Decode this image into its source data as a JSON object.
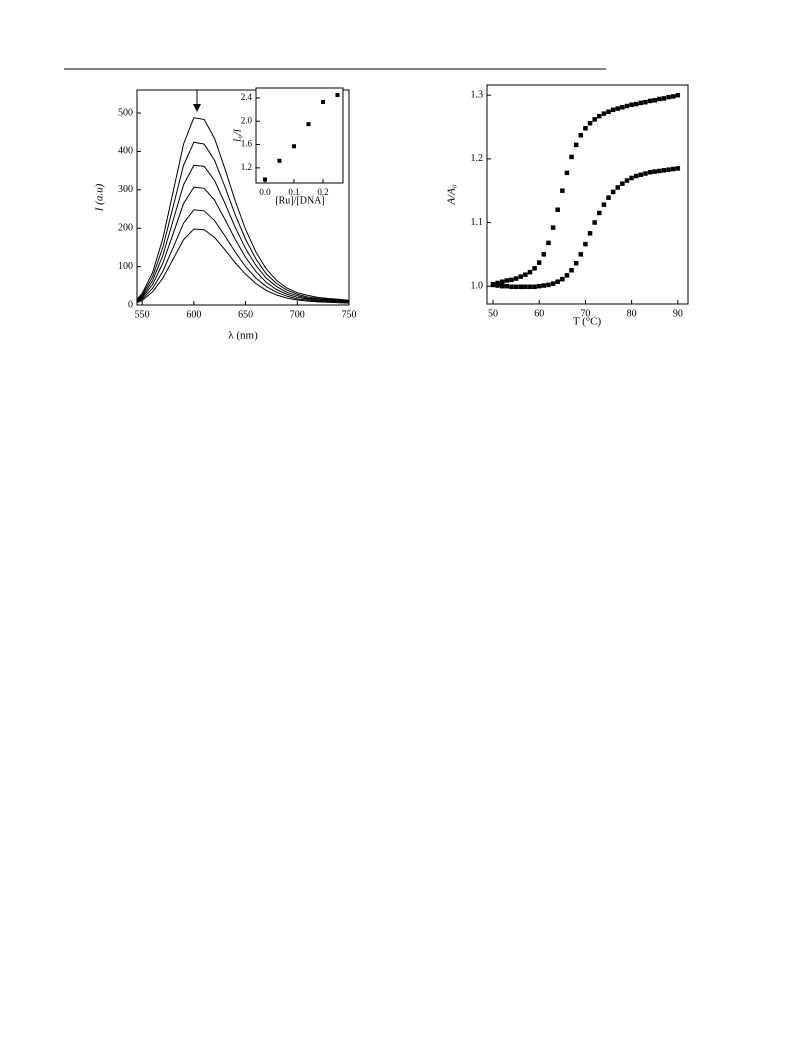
{
  "chart_data": [
    {
      "type": "line",
      "xlabel": "λ (nm)",
      "ylabel": "I (a.u)",
      "x": [
        545,
        550,
        560,
        570,
        580,
        590,
        600,
        610,
        620,
        630,
        640,
        650,
        660,
        670,
        680,
        690,
        700,
        710,
        720,
        730,
        740,
        750
      ],
      "series": [
        {
          "color": "#000000",
          "values": [
            15,
            30,
            84,
            173,
            296,
            419,
            488,
            483,
            434,
            355,
            271,
            197,
            138,
            94,
            64,
            44,
            32,
            25,
            20,
            17,
            15,
            12
          ]
        },
        {
          "color": "#000000",
          "values": [
            13,
            26,
            73,
            150,
            257,
            364,
            424,
            419,
            377,
            308,
            235,
            171,
            120,
            81,
            56,
            39,
            28,
            21,
            17,
            15,
            13,
            11
          ]
        },
        {
          "color": "#000000",
          "values": [
            11,
            22,
            63,
            129,
            221,
            313,
            364,
            361,
            324,
            265,
            202,
            147,
            103,
            70,
            48,
            33,
            24,
            18,
            15,
            13,
            11,
            9
          ]
        },
        {
          "color": "#000000",
          "values": [
            9,
            19,
            53,
            109,
            186,
            264,
            307,
            304,
            273,
            223,
            171,
            124,
            87,
            59,
            40,
            28,
            20,
            16,
            12,
            11,
            9,
            8
          ]
        },
        {
          "color": "#000000",
          "values": [
            8,
            15,
            43,
            88,
            150,
            213,
            248,
            245,
            220,
            180,
            138,
            100,
            70,
            48,
            33,
            23,
            16,
            13,
            10,
            9,
            8,
            6
          ]
        },
        {
          "color": "#000000",
          "values": [
            6,
            12,
            34,
            70,
            120,
            170,
            198,
            196,
            176,
            144,
            110,
            80,
            56,
            38,
            26,
            18,
            13,
            10,
            8,
            7,
            6,
            5
          ]
        }
      ],
      "xlim": [
        545,
        750
      ],
      "xticks": [
        550,
        600,
        650,
        700,
        750
      ],
      "ylim": [
        0,
        560
      ],
      "yticks": [
        0,
        100,
        200,
        300,
        400,
        500
      ]
    },
    {
      "type": "scatter",
      "xlabel": "[Ru]/[DNA]",
      "ylabel": "I₀/I",
      "x": [
        0,
        0.05,
        0.1,
        0.15,
        0.2,
        0.25
      ],
      "series": [
        {
          "color": "#000000",
          "values": [
            1.0,
            1.32,
            1.57,
            1.95,
            2.33,
            2.45
          ]
        }
      ],
      "xlim": [
        -0.031,
        0.269
      ],
      "xticks": [
        {
          "value": 0,
          "label": "0.0"
        },
        0.1,
        0.2
      ],
      "ylim": [
        0.94,
        2.57
      ],
      "yticks": [
        1.2,
        1.6,
        {
          "value": 2,
          "label": "2.0"
        },
        2.4
      ]
    },
    {
      "type": "scatter",
      "xlabel": "T (°C)",
      "ylabel": "A/A₀",
      "x": [
        50,
        51,
        52,
        53,
        54,
        55,
        56,
        57,
        58,
        59,
        60,
        61,
        62,
        63,
        64,
        65,
        66,
        67,
        68,
        69,
        70,
        71,
        72,
        73,
        74,
        75,
        76,
        77,
        78,
        79,
        80,
        81,
        82,
        83,
        84,
        85,
        86,
        87,
        88,
        89,
        90
      ],
      "series": [
        {
          "color": "#000000",
          "values": [
            1.003,
            1.005,
            1.007,
            1.009,
            1.01,
            1.012,
            1.015,
            1.018,
            1.022,
            1.028,
            1.037,
            1.05,
            1.068,
            1.092,
            1.12,
            1.15,
            1.178,
            1.203,
            1.222,
            1.237,
            1.248,
            1.256,
            1.262,
            1.267,
            1.271,
            1.274,
            1.277,
            1.279,
            1.281,
            1.283,
            1.285,
            1.286,
            1.288,
            1.289,
            1.291,
            1.292,
            1.294,
            1.295,
            1.297,
            1.298,
            1.3
          ]
        },
        {
          "color": "#000000",
          "values": [
            1.002,
            1.001,
            1.0,
            1.0,
            0.999,
            0.999,
            0.999,
            0.999,
            0.999,
            0.999,
            1.0,
            1.001,
            1.002,
            1.004,
            1.007,
            1.011,
            1.017,
            1.025,
            1.036,
            1.05,
            1.066,
            1.083,
            1.1,
            1.115,
            1.128,
            1.139,
            1.148,
            1.155,
            1.161,
            1.166,
            1.17,
            1.173,
            1.175,
            1.177,
            1.179,
            1.18,
            1.181,
            1.182,
            1.183,
            1.184,
            1.185
          ]
        }
      ],
      "xlim": [
        48.7,
        92.2
      ],
      "xticks": [
        50,
        60,
        70,
        80,
        90
      ],
      "ylim": [
        0.972,
        1.316
      ],
      "yticks": [
        {
          "value": 1,
          "label": "1.0"
        },
        1.1,
        1.2,
        1.3
      ]
    }
  ]
}
